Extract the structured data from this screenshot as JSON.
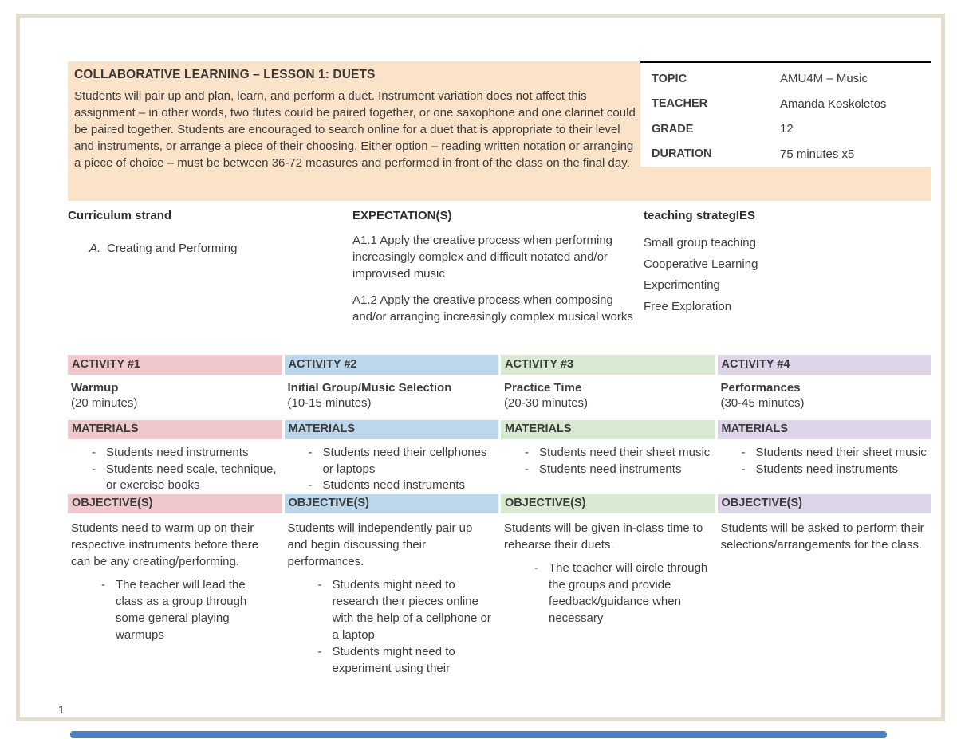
{
  "page": {
    "number": "1"
  },
  "overview": {
    "title": "COLLABORATIVE LEARNING – LESSON 1: DUETS",
    "description": "Students will pair up and plan, learn, and perform a duet. Instrument variation does not affect this assignment – in other words, two flutes could be paired together, or one saxophone and one clarinet could be paired together. Students are encouraged to search online for a duet that is appropriate to their level and instruments, or arrange a piece of their choosing. Either option – reading written notation or arranging a piece of choice – must be between 36-72 measures and performed in front of the class on the final day."
  },
  "info_table": {
    "rows": [
      {
        "label": "TOPIC",
        "value": "AMU4M – Music"
      },
      {
        "label": "TEACHER",
        "value": "Amanda Koskoletos"
      },
      {
        "label": "GRADE",
        "value": "12"
      },
      {
        "label": "DURATION",
        "value": "75 minutes x5"
      }
    ]
  },
  "curriculum": {
    "heading": "Curriculum strand",
    "item_marker": "A.",
    "item_text": "Creating and Performing"
  },
  "expectations": {
    "heading": "EXPECTATION(S)",
    "items": [
      "A1.1 Apply the creative process when performing increasingly complex and difficult notated and/or improvised music",
      "A1.2 Apply the creative process when composing and/or arranging increasingly complex musical works"
    ]
  },
  "strategies": {
    "heading": "teaching strategIES",
    "items": [
      "Small group teaching",
      "Cooperative Learning",
      "Experimenting",
      "Free Exploration"
    ]
  },
  "activities": {
    "materials_label": "MATERIALS",
    "objectives_label": "OBJECTIVE(S)",
    "colors": {
      "activity1": "#f0c8cb",
      "activity2": "#bcd7eb",
      "activity3": "#d8e9d2",
      "activity4": "#ded4e8",
      "band": "#fbe3c9"
    },
    "columns": [
      {
        "header": "ACTIVITY #1",
        "title": "Warmup",
        "duration": "(20 minutes)",
        "materials": [
          "Students need instruments",
          "Students need scale, technique, or exercise books"
        ],
        "objective_intro": "Students need to warm up on their respective instruments before there can be any creating/performing.",
        "objective_bullets": [
          "The teacher will lead the class as a group through some general playing warmups"
        ]
      },
      {
        "header": "ACTIVITY #2",
        "title": "Initial Group/Music Selection",
        "duration": "(10-15 minutes)",
        "materials": [
          "Students need their cellphones or laptops",
          "Students need instruments"
        ],
        "objective_intro": "Students will independently pair up and begin discussing their performances.",
        "objective_bullets": [
          "Students might need to research their pieces online with the help of a cellphone or a laptop",
          "Students might need to experiment using their"
        ]
      },
      {
        "header": "ACTIVITY #3",
        "title": "Practice Time",
        "duration": "(20-30 minutes)",
        "materials": [
          "Students need their sheet music",
          "Students need instruments"
        ],
        "objective_intro": "Students will be given in-class time to rehearse their duets.",
        "objective_bullets": [
          "The teacher will circle through the groups and provide feedback/guidance when necessary"
        ]
      },
      {
        "header": "ACTIVITY #4",
        "title": "Performances",
        "duration": "(30-45 minutes)",
        "materials": [
          "Students need their sheet music",
          "Students need instruments"
        ],
        "objective_intro": "Students will be asked to perform their selections/arrangements for the class.",
        "objective_bullets": []
      }
    ]
  }
}
